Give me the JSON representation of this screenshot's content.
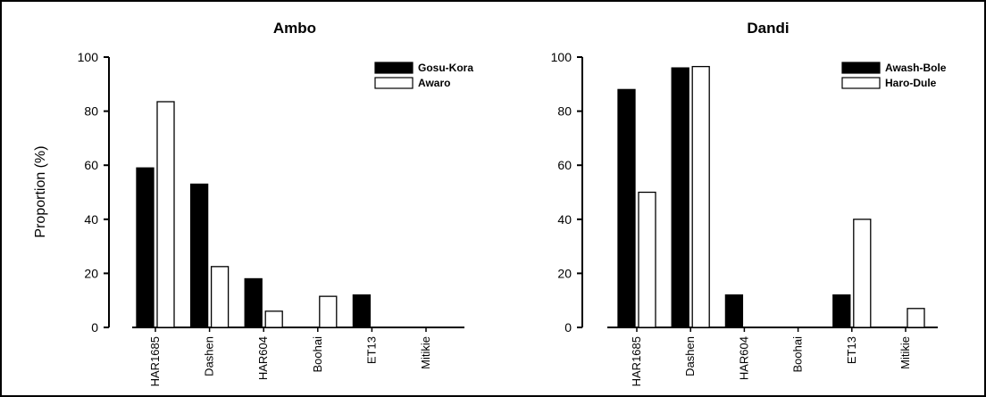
{
  "chart_data": [
    {
      "type": "bar",
      "title": "Ambo",
      "xlabel": "",
      "ylabel": "Proportion (%)",
      "ylim": [
        0,
        100
      ],
      "yticks": [
        0,
        20,
        40,
        60,
        80,
        100
      ],
      "categories": [
        "HAR1685",
        "Dashen",
        "HAR604",
        "Boohai",
        "ET13",
        "Mitikie"
      ],
      "legend_position": "top-right",
      "series": [
        {
          "name": "Gosu-Kora",
          "color": "#000000",
          "values": [
            59,
            53,
            18,
            0,
            12,
            0
          ]
        },
        {
          "name": "Awaro",
          "color": "#ffffff",
          "values": [
            83.5,
            22.5,
            6,
            11.5,
            0,
            0
          ]
        }
      ]
    },
    {
      "type": "bar",
      "title": "Dandi",
      "xlabel": "",
      "ylabel": "",
      "ylim": [
        0,
        100
      ],
      "yticks": [
        0,
        20,
        40,
        60,
        80,
        100
      ],
      "categories": [
        "HAR1685",
        "Dashen",
        "HAR604",
        "Boohai",
        "ET13",
        "Mitikie"
      ],
      "legend_position": "top-right",
      "series": [
        {
          "name": "Awash-Bole",
          "color": "#000000",
          "values": [
            88,
            96,
            12,
            0,
            12,
            0
          ]
        },
        {
          "name": "Haro-Dule",
          "color": "#ffffff",
          "values": [
            50,
            96.5,
            0,
            0,
            40,
            7
          ]
        }
      ]
    }
  ]
}
